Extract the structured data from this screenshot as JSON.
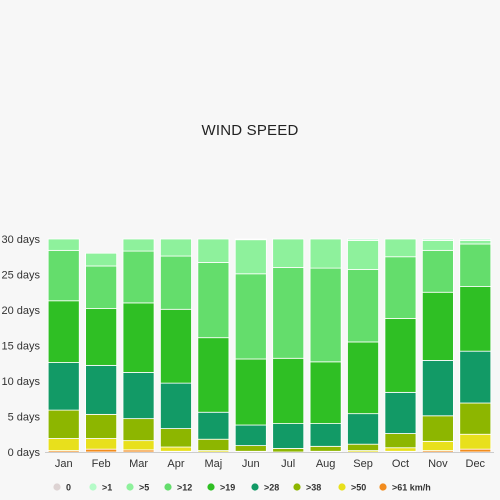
{
  "chart_data": {
    "type": "bar",
    "stacked": true,
    "title": "WIND SPEED",
    "xlabel": "",
    "ylabel": "",
    "ylim": [
      0,
      30
    ],
    "y_ticks": [
      0,
      5,
      10,
      15,
      20,
      25,
      30
    ],
    "y_tick_suffix": " days",
    "grid": false,
    "legend_position": "bottom",
    "categories": [
      "Jan",
      "Feb",
      "Mar",
      "Apr",
      "Maj",
      "Jun",
      "Jul",
      "Aug",
      "Sep",
      "Oct",
      "Nov",
      "Dec"
    ],
    "series": [
      {
        "name": ">61 km/h",
        "color": "#f28c1e",
        "values": [
          0.2,
          0.4,
          0.3,
          0.1,
          0.0,
          0.0,
          0.0,
          0.0,
          0.0,
          0.1,
          0.2,
          0.4
        ]
      },
      {
        "name": ">50",
        "color": "#e8e01c",
        "values": [
          1.7,
          1.5,
          1.3,
          0.6,
          0.2,
          0.1,
          0.0,
          0.1,
          0.2,
          0.5,
          1.3,
          2.1
        ]
      },
      {
        "name": ">38",
        "color": "#8db600",
        "values": [
          4.0,
          3.4,
          3.1,
          2.6,
          1.6,
          0.8,
          0.5,
          0.7,
          0.9,
          2.0,
          3.6,
          4.4
        ]
      },
      {
        "name": ">28",
        "color": "#129a66",
        "values": [
          6.7,
          6.9,
          6.5,
          6.4,
          3.8,
          2.9,
          3.5,
          3.2,
          4.3,
          5.8,
          7.8,
          7.3
        ]
      },
      {
        "name": ">19",
        "color": "#2fbf24",
        "values": [
          8.7,
          8.0,
          9.8,
          10.4,
          10.5,
          9.3,
          9.2,
          8.7,
          10.1,
          10.4,
          9.6,
          9.1
        ]
      },
      {
        "name": ">12",
        "color": "#64dd6c",
        "values": [
          7.1,
          6.0,
          7.3,
          7.5,
          10.6,
          12.0,
          12.8,
          13.2,
          10.2,
          8.7,
          5.9,
          6.0
        ]
      },
      {
        "name": ">5",
        "color": "#8ef19c",
        "values": [
          1.6,
          1.8,
          1.7,
          2.4,
          3.3,
          4.8,
          4.0,
          4.1,
          4.1,
          2.5,
          1.4,
          0.5
        ]
      },
      {
        "name": ">1",
        "color": "#b5fbc8",
        "values": [
          0.0,
          0.0,
          0.0,
          0.0,
          0.0,
          0.1,
          0.0,
          0.0,
          0.2,
          0.0,
          0.2,
          0.2
        ]
      },
      {
        "name": "0",
        "color": "#ddd3d3",
        "values": [
          0.0,
          0.0,
          0.0,
          0.0,
          0.0,
          0.0,
          0.0,
          0.0,
          0.0,
          0.0,
          0.0,
          0.0
        ]
      }
    ],
    "legend_order": [
      "0",
      ">1",
      ">5",
      ">12",
      ">19",
      ">28",
      ">38",
      ">50",
      ">61 km/h"
    ]
  }
}
